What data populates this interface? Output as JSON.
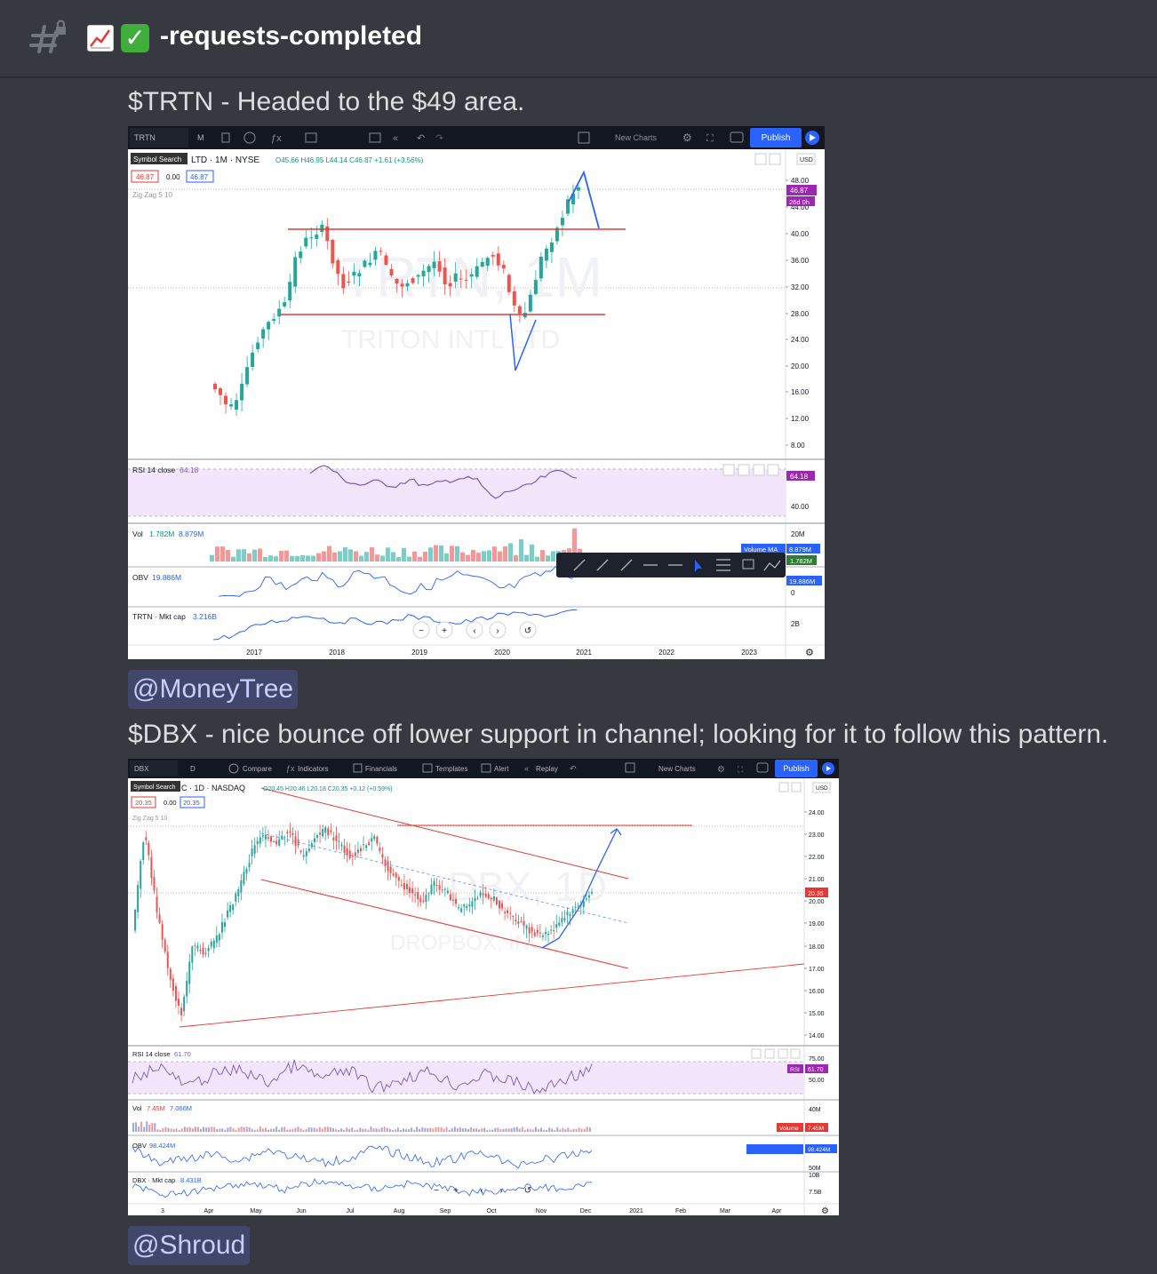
{
  "channel": {
    "name": "-requests-completed"
  },
  "messages": [
    {
      "text": "$TRTN - Headed to the $49 area."
    },
    {
      "mention": "@MoneyTree",
      "text": "$DBX - nice bounce off lower support in channel; looking for it to follow this pattern."
    },
    {
      "mention": "@Shroud"
    }
  ],
  "chart1": {
    "toolbar": {
      "symbol": "TRTN",
      "interval": "M",
      "new_charts": "New Charts",
      "publish": "Publish"
    },
    "header": {
      "tooltip": "Symbol Search",
      "title": "LTD · 1M · NYSE",
      "ohlc": "O45.66 H46.95 L44.14 C46.87 +1.61 (+3.56%)",
      "bid": "46.87",
      "spread": "0.00",
      "ask": "46.87",
      "indicator": "Zig Zag 5 10"
    },
    "watermark": {
      "ticker": "TRTN, 1M",
      "name": "TRITON INTL LTD"
    },
    "price_ticks": [
      "48.00",
      "44.00",
      "40.00",
      "36.00",
      "32.00",
      "28.00",
      "24.00",
      "20.00",
      "16.00",
      "12.00",
      "8.00"
    ],
    "currency": "USD",
    "last_price": "46.87",
    "countdown": "26d 0h",
    "panes": {
      "rsi": {
        "label": "RSI 14 close",
        "value": "64.18",
        "tick": "40.00"
      },
      "vol": {
        "label": "Vol",
        "v1": "1.782M",
        "v2": "8.879M",
        "tick": "20M",
        "ma_label": "Volume MA",
        "ma_value": "8.879M",
        "vol_value": "1.782M"
      },
      "obv": {
        "label": "OBV",
        "value": "19.886M",
        "tick": "0"
      },
      "mcap": {
        "label": "TRTN · Mkt cap",
        "value": "3.216B",
        "tick": "2B"
      }
    },
    "years": [
      "2017",
      "2018",
      "2019",
      "2020",
      "2021",
      "2022",
      "2023"
    ]
  },
  "chart2": {
    "toolbar": {
      "symbol": "DBX",
      "interval": "D",
      "compare": "Compare",
      "indicators": "Indicators",
      "financials": "Financials",
      "templates": "Templates",
      "alert": "Alert",
      "replay": "Replay",
      "new_charts": "New Charts",
      "publish": "Publish"
    },
    "header": {
      "tooltip": "Symbol Search",
      "title": "C · 1D · NASDAQ",
      "ohlc": "O20.45 H20.46 L20.18 C20.35 +0.12 (+0.59%)",
      "bid": "20.35",
      "spread": "0.00",
      "ask": "20.35",
      "indicator": "Zig Zag 5 10"
    },
    "watermark": {
      "ticker": "DBX, 1D",
      "name": "DROPBOX, INC."
    },
    "price_ticks": [
      "24.00",
      "23.00",
      "22.00",
      "21.00",
      "20.00",
      "19.00",
      "18.00",
      "17.00",
      "16.00",
      "15.00",
      "14.00"
    ],
    "currency": "USD",
    "last_price": "20.35",
    "panes": {
      "rsi": {
        "label": "RSI 14 close",
        "value": "61.70",
        "tick1": "75.00",
        "tick2": "50.00",
        "tag": "RSI"
      },
      "vol": {
        "label": "Vol",
        "v1": "7.45M",
        "v2": "7.066M",
        "tick": "40M",
        "ma_label": "Volume",
        "ma_value": "7.45M"
      },
      "obv": {
        "label": "OBV",
        "value": "98.424M",
        "tick": "50M"
      },
      "mcap": {
        "label": "DBX · Mkt cap",
        "value": "8.431B",
        "tick1": "10B",
        "tick2": "7.5B"
      }
    },
    "months": [
      "3",
      "Apr",
      "May",
      "Jun",
      "Jul",
      "Aug",
      "Sep",
      "Oct",
      "Nov",
      "Dec",
      "2021",
      "Feb",
      "Mar",
      "Apr"
    ]
  }
}
